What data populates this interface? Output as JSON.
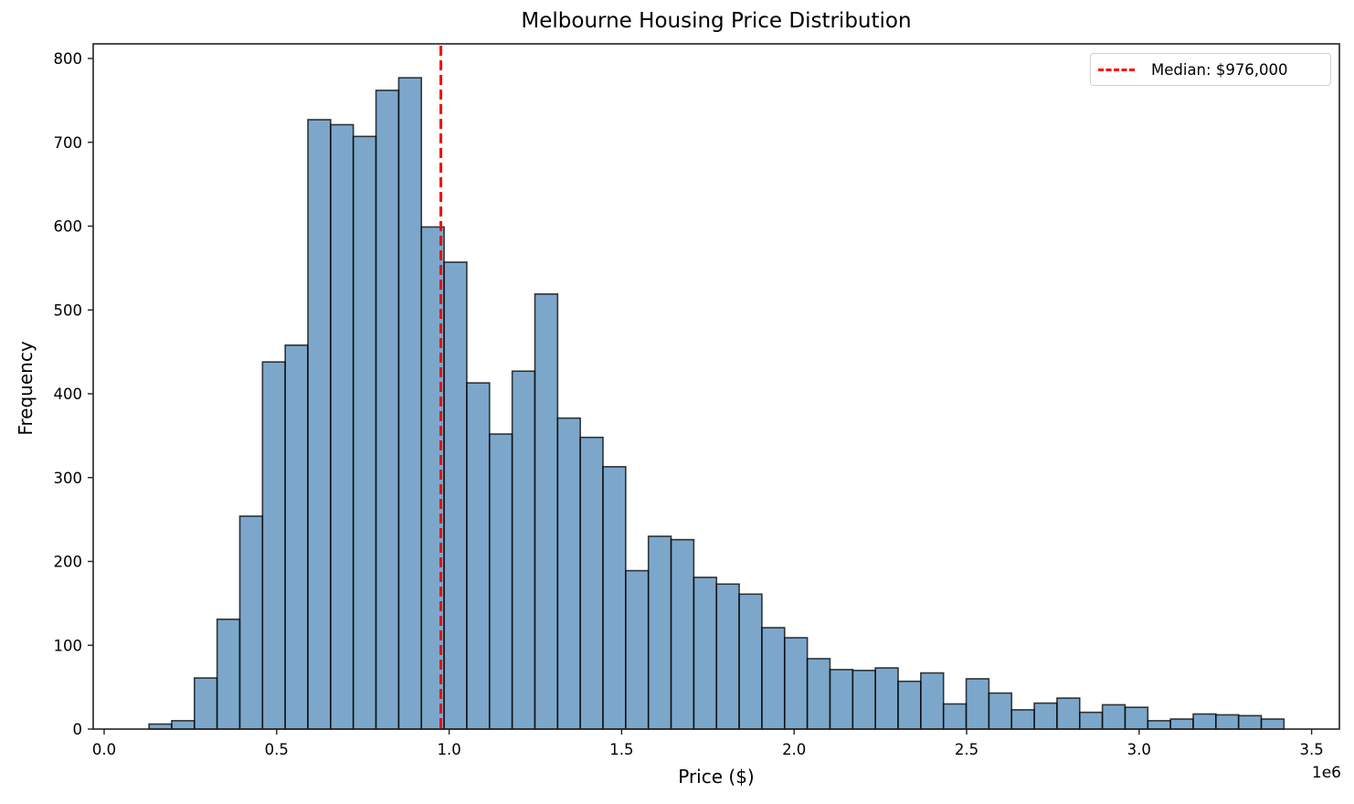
{
  "title": "Melbourne Housing Price Distribution",
  "xlabel": "Price ($)",
  "ylabel": "Frequency",
  "x_offset_label": "1e6",
  "legend": {
    "label": "Median: $976,000",
    "color": "#ff0000"
  },
  "colors": {
    "bar_fill": "#4682b4",
    "bar_fill_alpha": 0.7,
    "bar_edge": "#000000",
    "median_line": "#ff0000"
  },
  "chart_data": {
    "type": "bar",
    "subtype": "histogram",
    "title": "Melbourne Housing Price Distribution",
    "xlabel": "Price ($)",
    "ylabel": "Frequency",
    "x_scale_offset": "1e6",
    "xlim": [
      -0.03,
      3.58
    ],
    "ylim": [
      0,
      815
    ],
    "x_ticks": [
      0.0,
      0.5,
      1.0,
      1.5,
      2.0,
      2.5,
      3.0,
      3.5
    ],
    "x_tick_labels": [
      "0.0",
      "0.5",
      "1.0",
      "1.5",
      "2.0",
      "2.5",
      "3.0",
      "3.5"
    ],
    "y_ticks": [
      0,
      100,
      200,
      300,
      400,
      500,
      600,
      700,
      800
    ],
    "y_tick_labels": [
      "0",
      "100",
      "200",
      "300",
      "400",
      "500",
      "600",
      "700",
      "800"
    ],
    "bins": 50,
    "bin_start": 0.13,
    "bin_width": 0.0658,
    "values": [
      6,
      10,
      61,
      131,
      254,
      438,
      458,
      727,
      721,
      707,
      762,
      777,
      599,
      557,
      413,
      352,
      427,
      519,
      371,
      348,
      313,
      189,
      230,
      226,
      181,
      173,
      161,
      121,
      109,
      84,
      71,
      70,
      73,
      57,
      67,
      30,
      60,
      43,
      23,
      31,
      37,
      20,
      29,
      26,
      10,
      12,
      18,
      17,
      16,
      12
    ],
    "annotations": [
      {
        "type": "vline",
        "x": 0.976,
        "style": "dashed",
        "color": "#ff0000",
        "label": "Median: $976,000"
      }
    ],
    "legend_position": "upper right",
    "grid": false
  }
}
